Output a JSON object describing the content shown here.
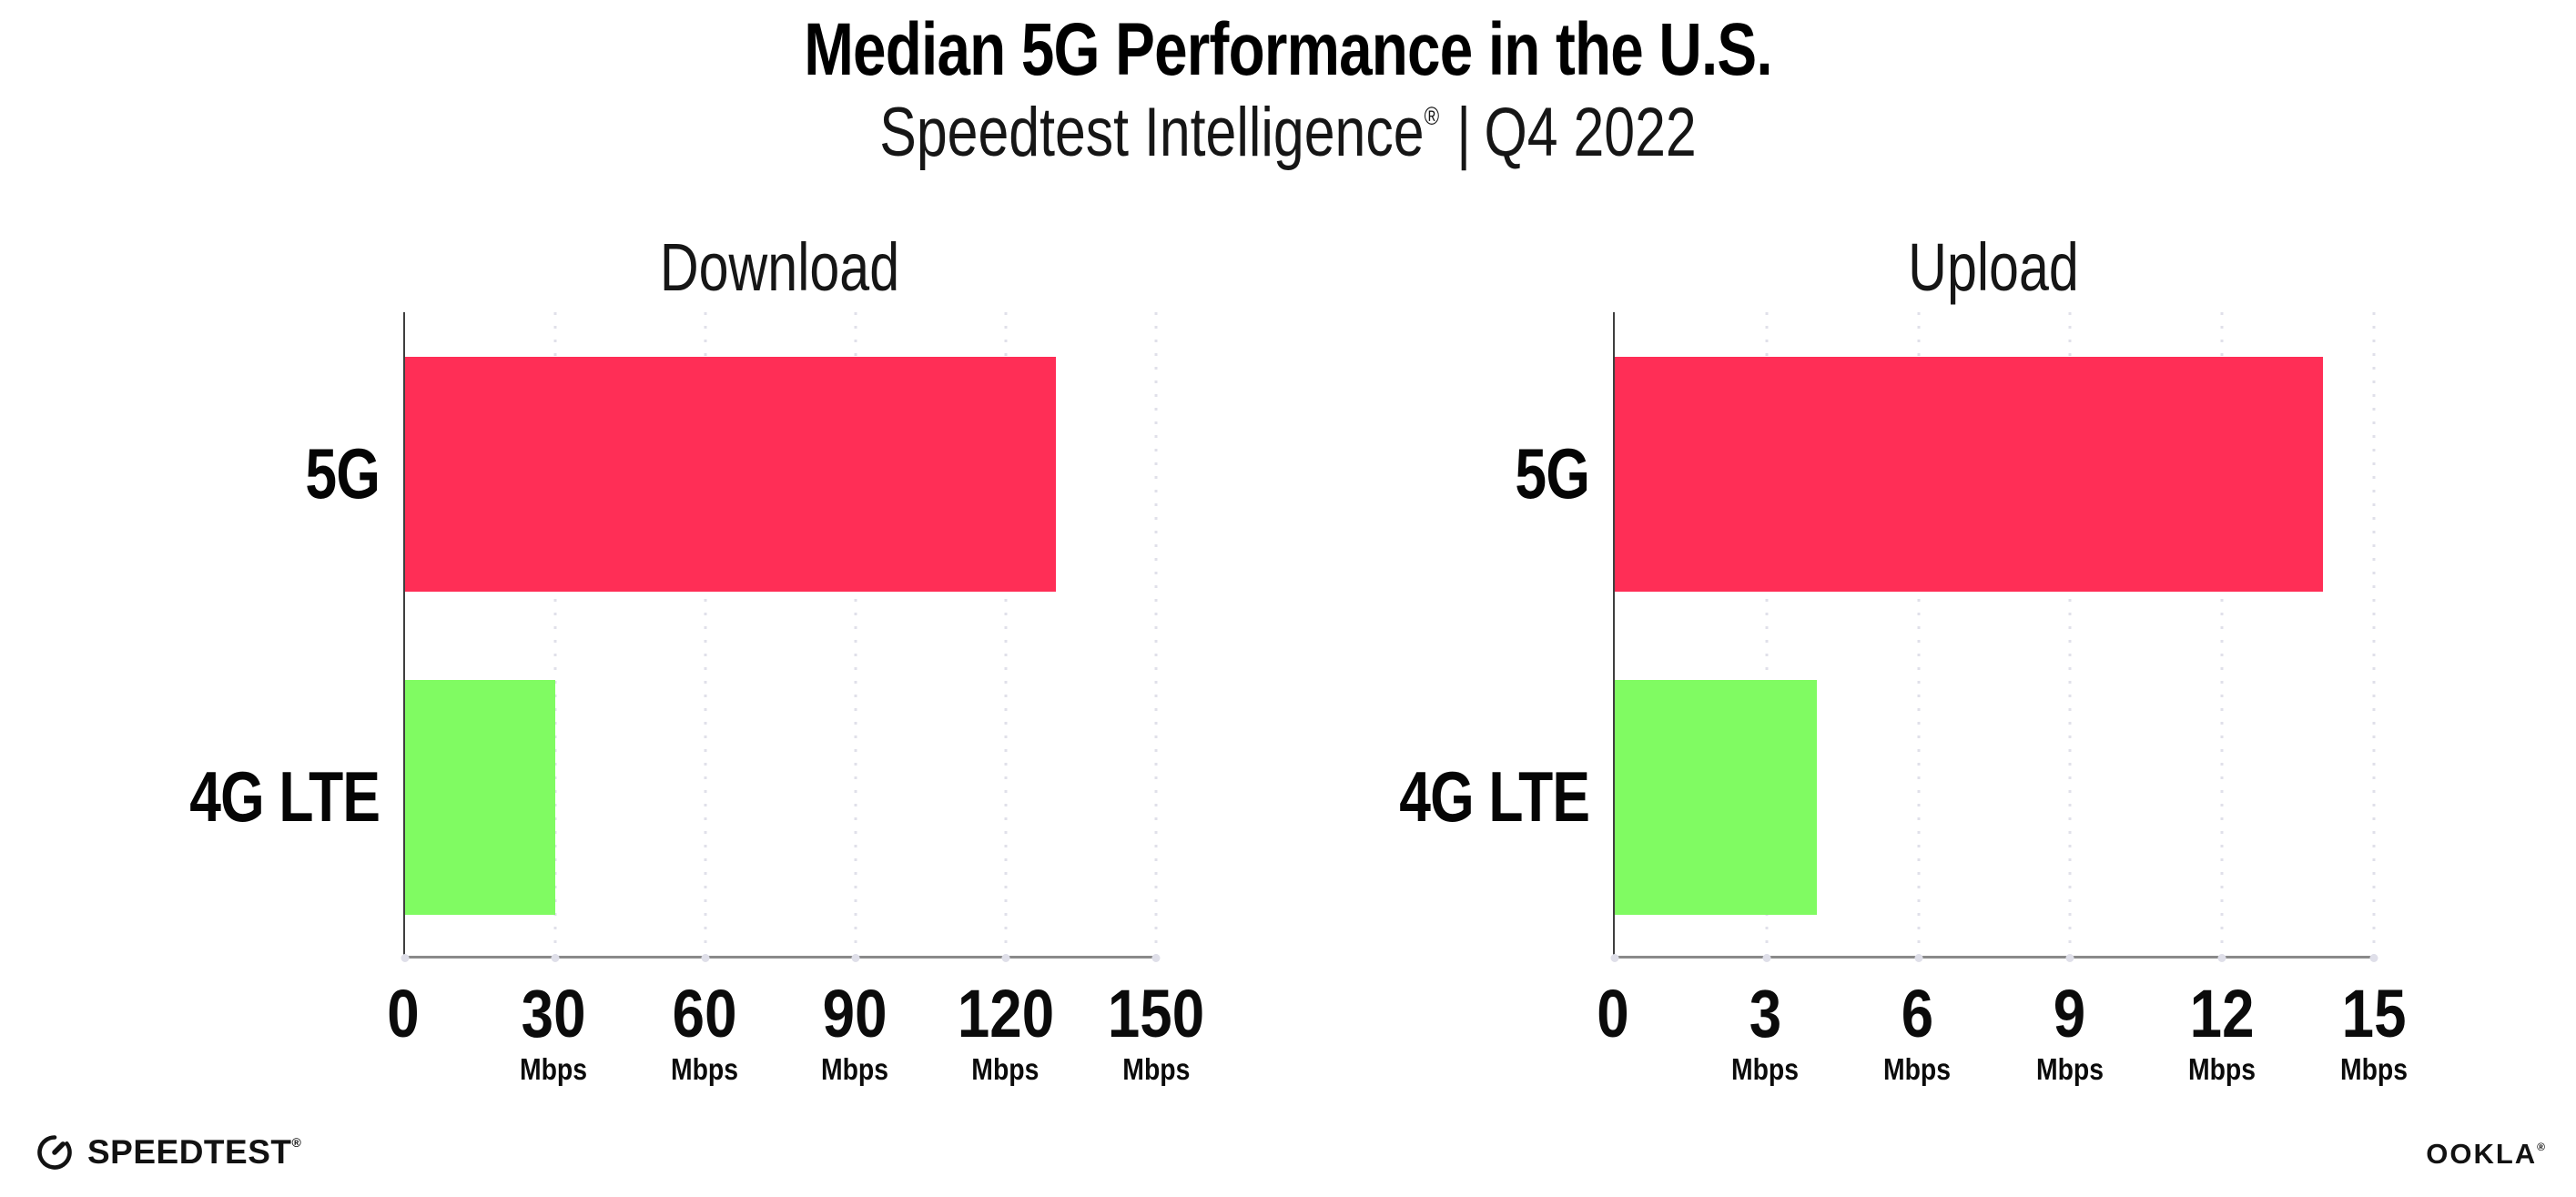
{
  "header": {
    "title": "Median 5G Performance in the U.S.",
    "subtitle": {
      "brand": "Speedtest Intelligence",
      "registered_mark": "®",
      "divider": "|",
      "period": "Q4 2022"
    }
  },
  "colors": {
    "bar_5g": "#ff2e56",
    "bar_4g_lte": "#80fb62",
    "x_axis_line": "#8a8a8a",
    "y_axis_line": "#3f3f3f",
    "gridline": "#e0e0ea",
    "tick_dot": "#dfdfe9",
    "text": "#000000"
  },
  "chart_data": [
    {
      "type": "bar",
      "orientation": "horizontal",
      "title": "Download",
      "categories": [
        "5G",
        "4G LTE"
      ],
      "values": [
        130,
        30
      ],
      "unit": "Mbps",
      "xlim": [
        0,
        150
      ],
      "xticks": [
        0,
        30,
        60,
        90,
        120,
        150
      ],
      "xtick_unit_labels": [
        "",
        "Mbps",
        "Mbps",
        "Mbps",
        "Mbps",
        "Mbps"
      ],
      "bar_colors": [
        "#ff2e56",
        "#80fb62"
      ],
      "grid": "dotted vertical gridlines",
      "legend": "none"
    },
    {
      "type": "bar",
      "orientation": "horizontal",
      "title": "Upload",
      "categories": [
        "5G",
        "4G LTE"
      ],
      "values": [
        14,
        4
      ],
      "unit": "Mbps",
      "xlim": [
        0,
        15
      ],
      "xticks": [
        0,
        3,
        6,
        9,
        12,
        15
      ],
      "xtick_unit_labels": [
        "",
        "Mbps",
        "Mbps",
        "Mbps",
        "Mbps",
        "Mbps"
      ],
      "bar_colors": [
        "#ff2e56",
        "#80fb62"
      ],
      "grid": "dotted vertical gridlines",
      "legend": "none"
    }
  ],
  "footer": {
    "speedtest_logo_text": "SPEEDTEST",
    "speedtest_logo_mark": "®",
    "ookla_logo_text": "OOKLA",
    "ookla_logo_mark": "®"
  }
}
